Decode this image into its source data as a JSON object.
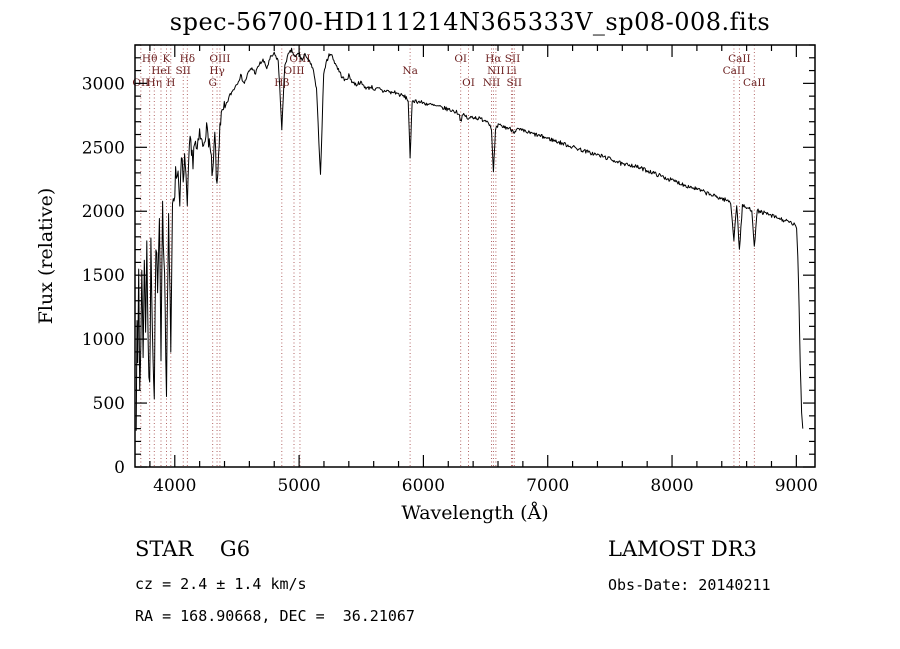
{
  "title": "spec-56700-HD111214N365333V_sp08-008.fits",
  "annotations": {
    "object_type": "STAR    G6",
    "survey": "LAMOST DR3",
    "cz": "cz = 2.4 ± 1.4 km/s",
    "obs_date": "Obs-Date: 20140211",
    "coords": "RA = 168.90668, DEC =  36.21067"
  },
  "chart_data": {
    "type": "line",
    "title": "spec-56700-HD111214N365333V_sp08-008.fits",
    "xlabel": "Wavelength (Å)",
    "ylabel": "Flux (relative)",
    "xlim": [
      3680,
      9150
    ],
    "ylim": [
      0,
      3300
    ],
    "x_ticks": [
      4000,
      5000,
      6000,
      7000,
      8000,
      9000
    ],
    "y_ticks": [
      0,
      500,
      1000,
      1500,
      2000,
      2500,
      3000
    ],
    "x_minor_step": 200,
    "y_minor_step": 100,
    "grid": false,
    "legend": "none",
    "line_color": "#000000",
    "axis_color": "#000000",
    "marker_line_color": "#aa5555",
    "marker_label_color": "#6b1f1f",
    "spectral_lines": [
      {
        "label": "OII",
        "wl": 3727,
        "row": 3
      },
      {
        "label": "Hθ",
        "wl": 3798,
        "row": 1
      },
      {
        "label": "Hη",
        "wl": 3835,
        "row": 3
      },
      {
        "label": "HeI",
        "wl": 3889,
        "row": 2
      },
      {
        "label": "K",
        "wl": 3933,
        "row": 1
      },
      {
        "label": "H",
        "wl": 3968,
        "row": 3
      },
      {
        "label": "SII",
        "wl": 4068,
        "row": 2
      },
      {
        "label": "Hδ",
        "wl": 4101,
        "row": 1
      },
      {
        "label": "G",
        "wl": 4305,
        "row": 3
      },
      {
        "label": "Hγ",
        "wl": 4340,
        "row": 2
      },
      {
        "label": "OIII",
        "wl": 4363,
        "row": 1
      },
      {
        "label": "Hβ",
        "wl": 4861,
        "row": 3
      },
      {
        "label": "OIII",
        "wl": 4959,
        "row": 2
      },
      {
        "label": "OIII",
        "wl": 5007,
        "row": 1
      },
      {
        "label": "Na",
        "wl": 5893,
        "row": 2
      },
      {
        "label": "OI",
        "wl": 6300,
        "row": 1
      },
      {
        "label": "OI",
        "wl": 6363,
        "row": 3
      },
      {
        "label": "NII",
        "wl": 6548,
        "row": 3
      },
      {
        "label": "Hα",
        "wl": 6563,
        "row": 1
      },
      {
        "label": "NII",
        "wl": 6583,
        "row": 2
      },
      {
        "label": "Li",
        "wl": 6708,
        "row": 2
      },
      {
        "label": "SII",
        "wl": 6717,
        "row": 1
      },
      {
        "label": "SII",
        "wl": 6731,
        "row": 3
      },
      {
        "label": "CaII",
        "wl": 8498,
        "row": 2
      },
      {
        "label": "CaII",
        "wl": 8542,
        "row": 1
      },
      {
        "label": "CaII",
        "wl": 8662,
        "row": 3
      }
    ],
    "noise": {
      "seed": 7,
      "blue_amp": 120,
      "mid_amp": 70,
      "red_amp": 16,
      "blue_cutoff": 4400,
      "blue_edge": 4150,
      "step": 6
    },
    "series": [
      {
        "name": "spectrum",
        "points": [
          [
            3690,
            400
          ],
          [
            3696,
            1250
          ],
          [
            3702,
            700
          ],
          [
            3710,
            1500
          ],
          [
            3718,
            600
          ],
          [
            3727,
            950
          ],
          [
            3735,
            1600
          ],
          [
            3745,
            800
          ],
          [
            3755,
            1700
          ],
          [
            3765,
            1050
          ],
          [
            3775,
            1800
          ],
          [
            3786,
            950
          ],
          [
            3798,
            550
          ],
          [
            3808,
            1700
          ],
          [
            3820,
            1150
          ],
          [
            3835,
            520
          ],
          [
            3848,
            1800
          ],
          [
            3862,
            1350
          ],
          [
            3876,
            1900
          ],
          [
            3889,
            800
          ],
          [
            3902,
            2000
          ],
          [
            3918,
            1550
          ],
          [
            3933,
            650
          ],
          [
            3950,
            2000
          ],
          [
            3968,
            850
          ],
          [
            3982,
            2100
          ],
          [
            4000,
            2200
          ],
          [
            4020,
            2350
          ],
          [
            4040,
            2150
          ],
          [
            4060,
            2400
          ],
          [
            4068,
            2150
          ],
          [
            4085,
            2450
          ],
          [
            4101,
            1950
          ],
          [
            4118,
            2500
          ],
          [
            4140,
            2400
          ],
          [
            4160,
            2550
          ],
          [
            4180,
            2450
          ],
          [
            4200,
            2600
          ],
          [
            4225,
            2500
          ],
          [
            4250,
            2650
          ],
          [
            4278,
            2550
          ],
          [
            4305,
            2250
          ],
          [
            4322,
            2600
          ],
          [
            4340,
            2150
          ],
          [
            4363,
            2700
          ],
          [
            4386,
            2760
          ],
          [
            4410,
            2820
          ],
          [
            4440,
            2900
          ],
          [
            4470,
            2950
          ],
          [
            4500,
            3000
          ],
          [
            4530,
            3060
          ],
          [
            4560,
            3000
          ],
          [
            4590,
            3080
          ],
          [
            4620,
            3120
          ],
          [
            4650,
            3080
          ],
          [
            4680,
            3150
          ],
          [
            4710,
            3180
          ],
          [
            4740,
            3120
          ],
          [
            4770,
            3200
          ],
          [
            4800,
            3230
          ],
          [
            4832,
            3180
          ],
          [
            4861,
            2650
          ],
          [
            4886,
            3150
          ],
          [
            4912,
            3220
          ],
          [
            4940,
            3260
          ],
          [
            4968,
            3200
          ],
          [
            4996,
            3240
          ],
          [
            5024,
            3180
          ],
          [
            5052,
            3230
          ],
          [
            5080,
            3170
          ],
          [
            5110,
            3120
          ],
          [
            5140,
            2950
          ],
          [
            5172,
            2280
          ],
          [
            5198,
            3080
          ],
          [
            5224,
            3180
          ],
          [
            5252,
            3240
          ],
          [
            5280,
            3180
          ],
          [
            5310,
            3120
          ],
          [
            5340,
            3060
          ],
          [
            5370,
            3020
          ],
          [
            5400,
            3060
          ],
          [
            5430,
            3010
          ],
          [
            5460,
            2990
          ],
          [
            5490,
            3010
          ],
          [
            5520,
            2980
          ],
          [
            5550,
            2960
          ],
          [
            5580,
            2975
          ],
          [
            5610,
            2950
          ],
          [
            5642,
            2958
          ],
          [
            5674,
            2936
          ],
          [
            5706,
            2946
          ],
          [
            5738,
            2926
          ],
          [
            5770,
            2932
          ],
          [
            5802,
            2914
          ],
          [
            5834,
            2902
          ],
          [
            5862,
            2888
          ],
          [
            5878,
            2862
          ],
          [
            5893,
            2400
          ],
          [
            5910,
            2868
          ],
          [
            5940,
            2862
          ],
          [
            5972,
            2854
          ],
          [
            6004,
            2846
          ],
          [
            6036,
            2838
          ],
          [
            6068,
            2830
          ],
          [
            6100,
            2822
          ],
          [
            6132,
            2814
          ],
          [
            6164,
            2806
          ],
          [
            6196,
            2798
          ],
          [
            6228,
            2788
          ],
          [
            6260,
            2778
          ],
          [
            6285,
            2766
          ],
          [
            6300,
            2705
          ],
          [
            6318,
            2752
          ],
          [
            6344,
            2742
          ],
          [
            6363,
            2715
          ],
          [
            6386,
            2740
          ],
          [
            6414,
            2733
          ],
          [
            6442,
            2726
          ],
          [
            6470,
            2719
          ],
          [
            6498,
            2712
          ],
          [
            6524,
            2702
          ],
          [
            6548,
            2640
          ],
          [
            6563,
            2300
          ],
          [
            6580,
            2630
          ],
          [
            6602,
            2672
          ],
          [
            6630,
            2664
          ],
          [
            6658,
            2656
          ],
          [
            6686,
            2650
          ],
          [
            6708,
            2638
          ],
          [
            6731,
            2624
          ],
          [
            6758,
            2640
          ],
          [
            6786,
            2632
          ],
          [
            6814,
            2624
          ],
          [
            6842,
            2616
          ],
          [
            6870,
            2608
          ],
          [
            6898,
            2600
          ],
          [
            6926,
            2592
          ],
          [
            6954,
            2584
          ],
          [
            6982,
            2576
          ],
          [
            7012,
            2566
          ],
          [
            7048,
            2554
          ],
          [
            7084,
            2542
          ],
          [
            7120,
            2530
          ],
          [
            7156,
            2518
          ],
          [
            7192,
            2506
          ],
          [
            7228,
            2494
          ],
          [
            7264,
            2482
          ],
          [
            7300,
            2470
          ],
          [
            7336,
            2458
          ],
          [
            7372,
            2448
          ],
          [
            7408,
            2438
          ],
          [
            7444,
            2428
          ],
          [
            7480,
            2416
          ],
          [
            7516,
            2404
          ],
          [
            7552,
            2392
          ],
          [
            7588,
            2372
          ],
          [
            7620,
            2358
          ],
          [
            7652,
            2368
          ],
          [
            7688,
            2356
          ],
          [
            7724,
            2344
          ],
          [
            7760,
            2332
          ],
          [
            7796,
            2320
          ],
          [
            7832,
            2306
          ],
          [
            7868,
            2292
          ],
          [
            7904,
            2278
          ],
          [
            7940,
            2264
          ],
          [
            7976,
            2250
          ],
          [
            8012,
            2238
          ],
          [
            8048,
            2226
          ],
          [
            8084,
            2212
          ],
          [
            8120,
            2198
          ],
          [
            8156,
            2188
          ],
          [
            8192,
            2176
          ],
          [
            8228,
            2162
          ],
          [
            8264,
            2148
          ],
          [
            8300,
            2134
          ],
          [
            8336,
            2120
          ],
          [
            8372,
            2108
          ],
          [
            8408,
            2096
          ],
          [
            8444,
            2084
          ],
          [
            8472,
            2068
          ],
          [
            8498,
            1780
          ],
          [
            8520,
            2056
          ],
          [
            8542,
            1700
          ],
          [
            8566,
            2042
          ],
          [
            8592,
            2030
          ],
          [
            8618,
            2020
          ],
          [
            8642,
            2010
          ],
          [
            8662,
            1730
          ],
          [
            8686,
            2004
          ],
          [
            8712,
            1996
          ],
          [
            8740,
            1986
          ],
          [
            8768,
            1976
          ],
          [
            8796,
            1966
          ],
          [
            8824,
            1956
          ],
          [
            8852,
            1946
          ],
          [
            8880,
            1936
          ],
          [
            8908,
            1926
          ],
          [
            8936,
            1916
          ],
          [
            8962,
            1906
          ],
          [
            8988,
            1894
          ],
          [
            9002,
            1860
          ],
          [
            9012,
            1650
          ],
          [
            9022,
            1250
          ],
          [
            9032,
            780
          ],
          [
            9042,
            430
          ],
          [
            9052,
            300
          ]
        ]
      }
    ]
  }
}
